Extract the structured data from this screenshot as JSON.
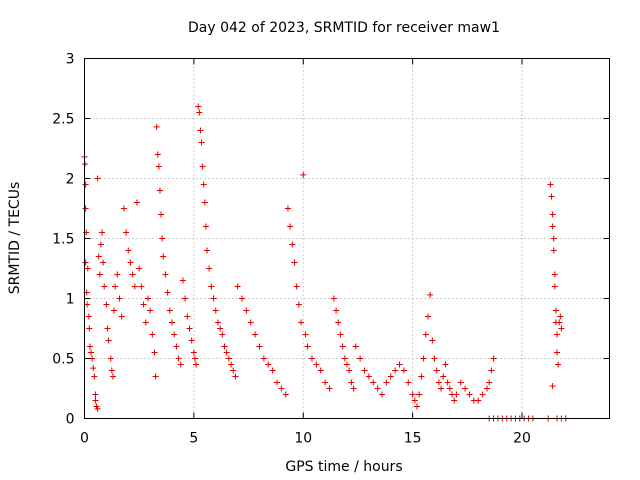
{
  "chart_data": {
    "type": "scatter",
    "title": "Day 042 of 2023, SRMTID for receiver maw1",
    "xlabel": "GPS time / hours",
    "ylabel": "SRMTID / TECUs",
    "xlim": [
      0,
      24
    ],
    "ylim": [
      0,
      3
    ],
    "xticks": [
      0,
      5,
      10,
      15,
      20
    ],
    "yticks": [
      0,
      0.5,
      1,
      1.5,
      2,
      2.5,
      3
    ],
    "xtick_labels": [
      "0",
      "5",
      "10",
      "15",
      "20"
    ],
    "ytick_labels": [
      "0",
      "0.5",
      "1",
      "1.5",
      "2",
      "2.5",
      "3"
    ],
    "grid": true,
    "marker": "+",
    "color": "#e00000",
    "series": [
      {
        "name": "SRMTID",
        "points": [
          [
            0.0,
            2.18
          ],
          [
            0.02,
            2.12
          ],
          [
            0.05,
            1.95
          ],
          [
            0.05,
            1.75
          ],
          [
            0.08,
            1.55
          ],
          [
            0.05,
            1.3
          ],
          [
            0.1,
            1.05
          ],
          [
            0.12,
            0.95
          ],
          [
            0.15,
            1.25
          ],
          [
            0.2,
            0.85
          ],
          [
            0.22,
            0.75
          ],
          [
            0.25,
            0.6
          ],
          [
            0.3,
            0.55
          ],
          [
            0.35,
            0.5
          ],
          [
            0.4,
            0.42
          ],
          [
            0.45,
            0.35
          ],
          [
            0.5,
            0.2
          ],
          [
            0.5,
            0.15
          ],
          [
            0.55,
            0.1
          ],
          [
            0.6,
            0.08
          ],
          [
            0.6,
            2.0
          ],
          [
            0.65,
            1.35
          ],
          [
            0.7,
            1.2
          ],
          [
            0.75,
            1.45
          ],
          [
            0.8,
            1.55
          ],
          [
            0.85,
            1.3
          ],
          [
            0.9,
            1.1
          ],
          [
            1.0,
            0.95
          ],
          [
            1.05,
            0.75
          ],
          [
            1.1,
            0.65
          ],
          [
            1.2,
            0.5
          ],
          [
            1.25,
            0.4
          ],
          [
            1.3,
            0.35
          ],
          [
            1.35,
            0.9
          ],
          [
            1.4,
            1.1
          ],
          [
            1.5,
            1.2
          ],
          [
            1.6,
            1.0
          ],
          [
            1.7,
            0.85
          ],
          [
            1.8,
            1.75
          ],
          [
            1.9,
            1.55
          ],
          [
            2.0,
            1.4
          ],
          [
            2.1,
            1.3
          ],
          [
            2.2,
            1.2
          ],
          [
            2.3,
            1.1
          ],
          [
            2.4,
            1.8
          ],
          [
            2.5,
            1.25
          ],
          [
            2.6,
            1.1
          ],
          [
            2.7,
            0.95
          ],
          [
            2.8,
            0.8
          ],
          [
            2.9,
            1.0
          ],
          [
            3.0,
            0.9
          ],
          [
            3.1,
            0.7
          ],
          [
            3.2,
            0.55
          ],
          [
            3.25,
            0.35
          ],
          [
            3.3,
            2.43
          ],
          [
            3.35,
            2.2
          ],
          [
            3.4,
            2.1
          ],
          [
            3.45,
            1.9
          ],
          [
            3.5,
            1.7
          ],
          [
            3.55,
            1.5
          ],
          [
            3.6,
            1.35
          ],
          [
            3.7,
            1.2
          ],
          [
            3.8,
            1.05
          ],
          [
            3.9,
            0.9
          ],
          [
            4.0,
            0.8
          ],
          [
            4.1,
            0.7
          ],
          [
            4.2,
            0.6
          ],
          [
            4.3,
            0.5
          ],
          [
            4.4,
            0.45
          ],
          [
            4.5,
            1.15
          ],
          [
            4.6,
            1.0
          ],
          [
            4.7,
            0.85
          ],
          [
            4.8,
            0.75
          ],
          [
            4.9,
            0.65
          ],
          [
            5.0,
            0.55
          ],
          [
            5.05,
            0.5
          ],
          [
            5.1,
            0.45
          ],
          [
            5.2,
            2.6
          ],
          [
            5.25,
            2.55
          ],
          [
            5.3,
            2.4
          ],
          [
            5.35,
            2.3
          ],
          [
            5.4,
            2.1
          ],
          [
            5.45,
            1.95
          ],
          [
            5.5,
            1.8
          ],
          [
            5.55,
            1.6
          ],
          [
            5.6,
            1.4
          ],
          [
            5.7,
            1.25
          ],
          [
            5.8,
            1.1
          ],
          [
            5.9,
            1.0
          ],
          [
            6.0,
            0.9
          ],
          [
            6.1,
            0.8
          ],
          [
            6.2,
            0.75
          ],
          [
            6.3,
            0.7
          ],
          [
            6.4,
            0.6
          ],
          [
            6.5,
            0.55
          ],
          [
            6.6,
            0.5
          ],
          [
            6.7,
            0.45
          ],
          [
            6.8,
            0.4
          ],
          [
            6.9,
            0.35
          ],
          [
            7.0,
            1.1
          ],
          [
            7.2,
            1.0
          ],
          [
            7.4,
            0.9
          ],
          [
            7.6,
            0.8
          ],
          [
            7.8,
            0.7
          ],
          [
            8.0,
            0.6
          ],
          [
            8.2,
            0.5
          ],
          [
            8.4,
            0.45
          ],
          [
            8.6,
            0.4
          ],
          [
            8.8,
            0.3
          ],
          [
            9.0,
            0.25
          ],
          [
            9.2,
            0.2
          ],
          [
            9.3,
            1.75
          ],
          [
            9.4,
            1.6
          ],
          [
            9.5,
            1.45
          ],
          [
            9.6,
            1.3
          ],
          [
            9.7,
            1.1
          ],
          [
            9.8,
            0.95
          ],
          [
            9.9,
            0.8
          ],
          [
            10.0,
            2.03
          ],
          [
            10.1,
            0.7
          ],
          [
            10.2,
            0.6
          ],
          [
            10.4,
            0.5
          ],
          [
            10.6,
            0.45
          ],
          [
            10.8,
            0.4
          ],
          [
            11.0,
            0.3
          ],
          [
            11.2,
            0.25
          ],
          [
            11.4,
            1.0
          ],
          [
            11.5,
            0.9
          ],
          [
            11.6,
            0.8
          ],
          [
            11.7,
            0.7
          ],
          [
            11.8,
            0.6
          ],
          [
            11.9,
            0.5
          ],
          [
            12.0,
            0.45
          ],
          [
            12.1,
            0.4
          ],
          [
            12.2,
            0.3
          ],
          [
            12.3,
            0.25
          ],
          [
            12.4,
            0.6
          ],
          [
            12.6,
            0.5
          ],
          [
            12.8,
            0.4
          ],
          [
            13.0,
            0.35
          ],
          [
            13.2,
            0.3
          ],
          [
            13.4,
            0.25
          ],
          [
            13.6,
            0.2
          ],
          [
            13.8,
            0.3
          ],
          [
            14.0,
            0.35
          ],
          [
            14.2,
            0.4
          ],
          [
            14.4,
            0.45
          ],
          [
            14.6,
            0.4
          ],
          [
            14.8,
            0.3
          ],
          [
            15.0,
            0.2
          ],
          [
            15.1,
            0.15
          ],
          [
            15.2,
            0.1
          ],
          [
            15.3,
            0.2
          ],
          [
            15.4,
            0.35
          ],
          [
            15.5,
            0.5
          ],
          [
            15.6,
            0.7
          ],
          [
            15.7,
            0.85
          ],
          [
            15.8,
            1.03
          ],
          [
            15.9,
            0.65
          ],
          [
            16.0,
            0.5
          ],
          [
            16.1,
            0.4
          ],
          [
            16.2,
            0.3
          ],
          [
            16.3,
            0.25
          ],
          [
            16.4,
            0.35
          ],
          [
            16.5,
            0.45
          ],
          [
            16.6,
            0.3
          ],
          [
            16.7,
            0.25
          ],
          [
            16.8,
            0.2
          ],
          [
            16.9,
            0.15
          ],
          [
            17.0,
            0.2
          ],
          [
            17.2,
            0.3
          ],
          [
            17.4,
            0.25
          ],
          [
            17.6,
            0.2
          ],
          [
            17.8,
            0.15
          ],
          [
            18.0,
            0.15
          ],
          [
            18.2,
            0.2
          ],
          [
            18.4,
            0.25
          ],
          [
            18.5,
            0.3
          ],
          [
            18.6,
            0.4
          ],
          [
            18.7,
            0.5
          ],
          [
            18.5,
            0.0
          ],
          [
            18.7,
            0.0
          ],
          [
            18.9,
            0.0
          ],
          [
            19.1,
            0.0
          ],
          [
            19.3,
            0.0
          ],
          [
            19.5,
            0.0
          ],
          [
            19.7,
            0.0
          ],
          [
            19.9,
            0.0
          ],
          [
            20.1,
            0.0
          ],
          [
            20.3,
            0.0
          ],
          [
            20.5,
            0.0
          ],
          [
            21.2,
            0.0
          ],
          [
            21.3,
            1.95
          ],
          [
            21.35,
            1.85
          ],
          [
            21.4,
            1.7
          ],
          [
            21.4,
            1.6
          ],
          [
            21.45,
            1.5
          ],
          [
            21.45,
            1.4
          ],
          [
            21.5,
            1.2
          ],
          [
            21.5,
            1.1
          ],
          [
            21.55,
            0.9
          ],
          [
            21.55,
            0.8
          ],
          [
            21.6,
            0.7
          ],
          [
            21.6,
            0.55
          ],
          [
            21.65,
            0.45
          ],
          [
            21.4,
            0.27
          ],
          [
            21.7,
            0.8
          ],
          [
            21.75,
            0.85
          ],
          [
            21.8,
            0.75
          ],
          [
            21.6,
            0.0
          ],
          [
            21.8,
            0.0
          ],
          [
            22.0,
            0.0
          ]
        ]
      }
    ]
  }
}
